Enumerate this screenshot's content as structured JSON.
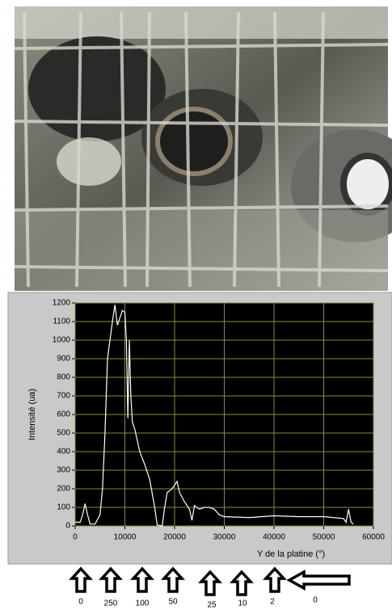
{
  "chart_data": {
    "type": "line",
    "xlabel": "Y de la platine (°)",
    "ylabel": "Intensité (ua)",
    "x": [
      0,
      1000,
      1500,
      2000,
      2500,
      3000,
      4000,
      5000,
      5500,
      6000,
      6500,
      7000,
      7500,
      8000,
      8500,
      9000,
      9500,
      10000,
      10300,
      10600,
      10900,
      11200,
      11500,
      12000,
      13000,
      14000,
      15000,
      16000,
      16500,
      17500,
      18000,
      18500,
      19500,
      20000,
      20500,
      21000,
      22000,
      23000,
      23500,
      24000,
      25000,
      26000,
      27000,
      28000,
      29000,
      30000,
      35000,
      40000,
      45000,
      50000,
      54000,
      54500,
      55000,
      55500,
      56000
    ],
    "series": [
      {
        "color": "#ffffff",
        "values": [
          20,
          20,
          60,
          120,
          60,
          10,
          10,
          60,
          200,
          500,
          900,
          1000,
          1100,
          1190,
          1080,
          1120,
          1160,
          1150,
          1000,
          580,
          1000,
          700,
          560,
          520,
          400,
          330,
          250,
          100,
          5,
          0,
          100,
          180,
          200,
          220,
          240,
          180,
          130,
          90,
          30,
          110,
          90,
          100,
          100,
          90,
          60,
          50,
          45,
          55,
          50,
          50,
          40,
          20,
          90,
          20,
          10
        ]
      }
    ],
    "xlim": [
      0,
      60000
    ],
    "ylim": [
      0,
      1200
    ],
    "xticks": [
      0,
      10000,
      20000,
      30000,
      40000,
      50000,
      60000
    ],
    "yticks": [
      0,
      100,
      200,
      300,
      400,
      500,
      600,
      700,
      800,
      900,
      1000,
      1100,
      1200
    ],
    "grid": true
  },
  "attenuation_labels": [
    "0",
    "250",
    "100",
    "50",
    "25",
    "10",
    "2",
    "0"
  ]
}
